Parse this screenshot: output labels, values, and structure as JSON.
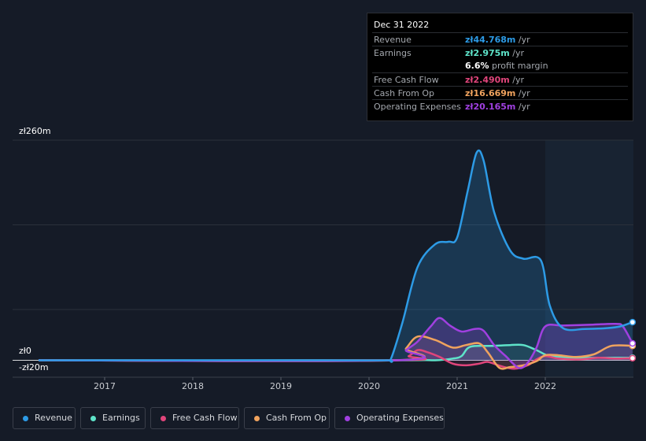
{
  "tooltip": {
    "date": "Dec 31 2022",
    "rows": {
      "revenue": {
        "label": "Revenue",
        "value": "zł44.768m",
        "unit": " /yr",
        "color": "#2d9be6"
      },
      "earnings": {
        "label": "Earnings",
        "value": "zł2.975m",
        "unit": " /yr",
        "color": "#5ee3c9"
      },
      "margin": {
        "value": "6.6%",
        "text": " profit margin"
      },
      "fcf": {
        "label": "Free Cash Flow",
        "value": "zł2.490m",
        "unit": " /yr",
        "color": "#e0457b"
      },
      "cfo": {
        "label": "Cash From Op",
        "value": "zł16.669m",
        "unit": " /yr",
        "color": "#f0a35e"
      },
      "opex": {
        "label": "Operating Expenses",
        "value": "zł20.165m",
        "unit": " /yr",
        "color": "#a040e0"
      }
    }
  },
  "legend": [
    {
      "label": "Revenue",
      "color": "#2d9be6"
    },
    {
      "label": "Earnings",
      "color": "#5ee3c9"
    },
    {
      "label": "Free Cash Flow",
      "color": "#e0457b"
    },
    {
      "label": "Cash From Op",
      "color": "#f0a35e"
    },
    {
      "label": "Operating Expenses",
      "color": "#a040e0"
    }
  ],
  "chart_data": {
    "type": "line",
    "ylim": [
      -20,
      260
    ],
    "y_tick_labels": {
      "top": "zł260m",
      "zero": "zł0",
      "bottom": "-zł20m"
    },
    "x_ticks": [
      "2017",
      "2018",
      "2019",
      "2020",
      "2021",
      "2022"
    ],
    "series": [
      {
        "name": "Revenue",
        "color": "#2d9be6",
        "points": [
          [
            2016.25,
            0
          ],
          [
            2018,
            0
          ],
          [
            2019.5,
            0
          ],
          [
            2020.2,
            0
          ],
          [
            2020.25,
            2
          ],
          [
            2020.38,
            45
          ],
          [
            2020.55,
            110
          ],
          [
            2020.75,
            137
          ],
          [
            2020.9,
            140
          ],
          [
            2021.0,
            145
          ],
          [
            2021.12,
            200
          ],
          [
            2021.22,
            245
          ],
          [
            2021.3,
            236
          ],
          [
            2021.42,
            175
          ],
          [
            2021.6,
            130
          ],
          [
            2021.75,
            120
          ],
          [
            2021.95,
            118
          ],
          [
            2022.05,
            65
          ],
          [
            2022.2,
            38
          ],
          [
            2022.45,
            37
          ],
          [
            2022.7,
            38
          ],
          [
            2022.85,
            40
          ],
          [
            2022.99,
            45
          ]
        ]
      },
      {
        "name": "Earnings",
        "color": "#5ee3c9",
        "points": [
          [
            2016.25,
            0
          ],
          [
            2020.3,
            0
          ],
          [
            2020.5,
            1
          ],
          [
            2020.75,
            0
          ],
          [
            2020.95,
            2
          ],
          [
            2021.05,
            5
          ],
          [
            2021.15,
            16
          ],
          [
            2021.4,
            17
          ],
          [
            2021.6,
            18
          ],
          [
            2021.75,
            18
          ],
          [
            2021.9,
            12
          ],
          [
            2022.05,
            5
          ],
          [
            2022.3,
            3
          ],
          [
            2022.6,
            3
          ],
          [
            2022.99,
            3
          ]
        ]
      },
      {
        "name": "Free Cash Flow",
        "color": "#e0457b",
        "points": [
          [
            2016.25,
            0
          ],
          [
            2020.3,
            0
          ],
          [
            2020.45,
            5
          ],
          [
            2020.55,
            12
          ],
          [
            2020.65,
            10
          ],
          [
            2020.8,
            4
          ],
          [
            2020.95,
            -4
          ],
          [
            2021.1,
            -6
          ],
          [
            2021.25,
            -4
          ],
          [
            2021.35,
            -2
          ],
          [
            2021.5,
            -7
          ],
          [
            2021.65,
            -10
          ],
          [
            2021.8,
            -6
          ],
          [
            2021.9,
            1
          ],
          [
            2022.0,
            5
          ],
          [
            2022.15,
            2
          ],
          [
            2022.4,
            1
          ],
          [
            2022.6,
            3
          ],
          [
            2022.8,
            2
          ],
          [
            2022.99,
            2.5
          ]
        ]
      },
      {
        "name": "Cash From Op",
        "color": "#f0a35e",
        "points": [
          [
            2016.25,
            0
          ],
          [
            2020.3,
            0
          ],
          [
            2020.42,
            14
          ],
          [
            2020.55,
            28
          ],
          [
            2020.75,
            24
          ],
          [
            2020.95,
            15
          ],
          [
            2021.1,
            18
          ],
          [
            2021.25,
            20
          ],
          [
            2021.35,
            9
          ],
          [
            2021.48,
            -9
          ],
          [
            2021.6,
            -8
          ],
          [
            2021.75,
            -6
          ],
          [
            2021.9,
            -1
          ],
          [
            2022.0,
            6
          ],
          [
            2022.15,
            6
          ],
          [
            2022.35,
            4
          ],
          [
            2022.55,
            7
          ],
          [
            2022.75,
            17
          ],
          [
            2022.99,
            17
          ]
        ]
      },
      {
        "name": "Operating Expenses",
        "color": "#a040e0",
        "points": [
          [
            2016.25,
            0
          ],
          [
            2020.3,
            0
          ],
          [
            2020.42,
            12
          ],
          [
            2020.55,
            22
          ],
          [
            2020.7,
            40
          ],
          [
            2020.8,
            50
          ],
          [
            2020.92,
            41
          ],
          [
            2021.05,
            34
          ],
          [
            2021.2,
            37
          ],
          [
            2021.3,
            35
          ],
          [
            2021.42,
            18
          ],
          [
            2021.55,
            5
          ],
          [
            2021.7,
            -9
          ],
          [
            2021.8,
            -3
          ],
          [
            2021.9,
            15
          ],
          [
            2022.0,
            40
          ],
          [
            2022.2,
            41
          ],
          [
            2022.5,
            42
          ],
          [
            2022.8,
            43
          ],
          [
            2022.88,
            40
          ],
          [
            2022.99,
            20
          ]
        ]
      }
    ]
  }
}
